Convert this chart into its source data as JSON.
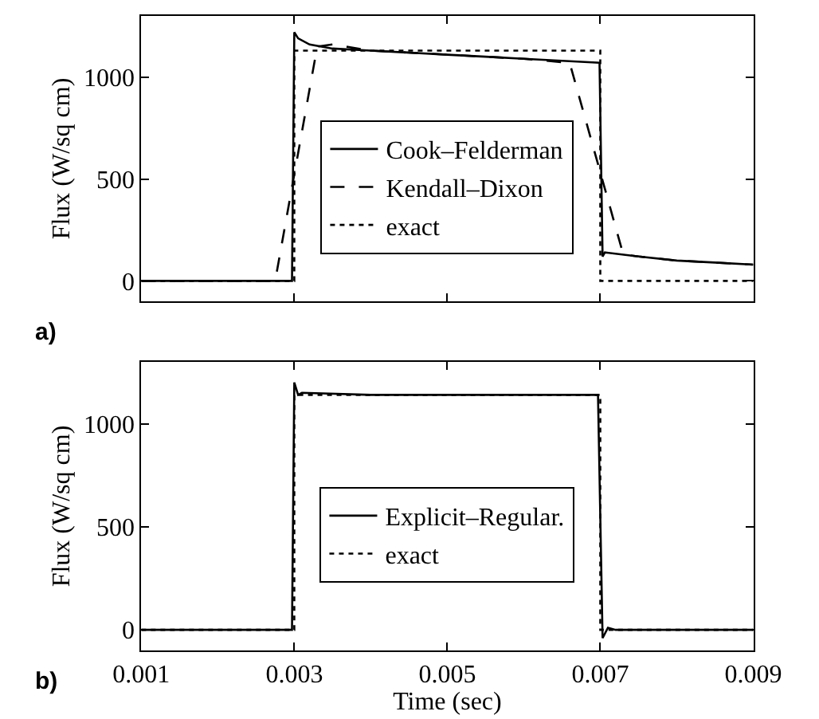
{
  "chart_data": [
    {
      "type": "line",
      "ylabel": "Flux (W/sq cm)",
      "annotations": [
        "a)"
      ],
      "xlim": [
        0.001,
        0.009
      ],
      "xticks": [
        0.001,
        0.003,
        0.005,
        0.007,
        0.009
      ],
      "ylim": [
        -100,
        1300
      ],
      "yticks": [
        0,
        500,
        1000
      ],
      "tick_labels": "y",
      "legend": "center",
      "series": [
        {
          "name": "Cook–Felderman",
          "color": "#000000",
          "line_style": "solid",
          "x": [
            0.001,
            0.00297,
            0.003,
            0.00305,
            0.0032,
            0.0035,
            0.004,
            0.0045,
            0.005,
            0.0055,
            0.006,
            0.0065,
            0.00699,
            0.00703,
            0.00706,
            0.0075,
            0.008,
            0.0085,
            0.009
          ],
          "values": [
            0,
            0,
            1220,
            1190,
            1160,
            1140,
            1130,
            1120,
            1110,
            1100,
            1090,
            1080,
            1070,
            120,
            140,
            120,
            100,
            90,
            80
          ]
        },
        {
          "name": "Kendall–Dixon",
          "color": "#000000",
          "line_style": "dashed",
          "x": [
            0.001,
            0.00275,
            0.0033,
            0.0035,
            0.004,
            0.005,
            0.006,
            0.0066,
            0.0073,
            0.0075,
            0.008,
            0.009
          ],
          "values": [
            0,
            0,
            1150,
            1160,
            1130,
            1110,
            1090,
            1070,
            130,
            120,
            100,
            80
          ]
        },
        {
          "name": "exact",
          "color": "#000000",
          "line_style": "dotted",
          "x": [
            0.001,
            0.003,
            0.003,
            0.007,
            0.007,
            0.009
          ],
          "values": [
            0,
            0,
            1130,
            1130,
            0,
            0
          ]
        }
      ]
    },
    {
      "type": "line",
      "xlabel": "Time (sec)",
      "ylabel": "Flux (W/sq cm)",
      "annotations": [
        "b)"
      ],
      "xlim": [
        0.001,
        0.009
      ],
      "xticks": [
        0.001,
        0.003,
        0.005,
        0.007,
        0.009
      ],
      "ylim": [
        -100,
        1300
      ],
      "yticks": [
        0,
        500,
        1000
      ],
      "legend": "center",
      "series": [
        {
          "name": "Explicit–Regular.",
          "color": "#000000",
          "line_style": "solid",
          "x": [
            0.001,
            0.00297,
            0.003,
            0.00305,
            0.0031,
            0.004,
            0.005,
            0.006,
            0.00697,
            0.00703,
            0.0071,
            0.0072,
            0.009
          ],
          "values": [
            0,
            0,
            1200,
            1140,
            1150,
            1140,
            1140,
            1140,
            1140,
            -40,
            10,
            0,
            0
          ]
        },
        {
          "name": "exact",
          "color": "#000000",
          "line_style": "dotted",
          "x": [
            0.001,
            0.003,
            0.003,
            0.007,
            0.007,
            0.009
          ],
          "values": [
            0,
            0,
            1140,
            1140,
            0,
            0
          ]
        }
      ]
    }
  ]
}
